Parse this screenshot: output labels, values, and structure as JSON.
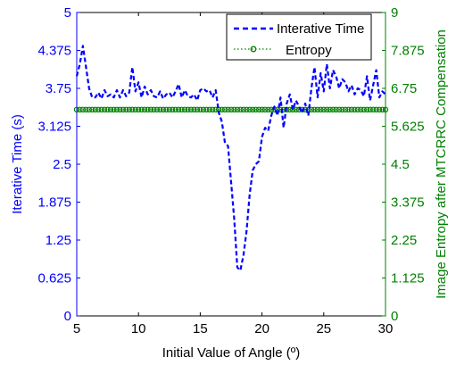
{
  "chart_data": {
    "type": "line",
    "xlabel": "Initial Value of Angle (º)",
    "ylabel_left": "Iterative Time (s)",
    "ylabel_right": "Image Entropy  after MTCRRC Compensation",
    "xlim": [
      5,
      30
    ],
    "ylim_left": [
      0,
      5
    ],
    "ylim_right": [
      0,
      9
    ],
    "x_ticks": [
      "5",
      "10",
      "15",
      "20",
      "25",
      "30"
    ],
    "y_ticks_left": [
      "0",
      "0.625",
      "1.25",
      "1.875",
      "2.5",
      "3.125",
      "3.75",
      "4.375",
      "5"
    ],
    "y_ticks_right": [
      "0",
      "1.125",
      "2.25",
      "3.375",
      "4.5",
      "5.625",
      "6.75",
      "7.875",
      "9"
    ],
    "legend_position": "top-right",
    "colors": {
      "left_axis": "#0000ff",
      "right_axis": "#008000",
      "iterative_series": "#0000ff",
      "entropy_series": "#008000"
    },
    "series": [
      {
        "name": "Interative Time",
        "axis": "left",
        "style": "dashed",
        "x": [
          5.0,
          5.25,
          5.5,
          5.75,
          6.0,
          6.25,
          6.5,
          6.75,
          7.0,
          7.25,
          7.5,
          7.75,
          8.0,
          8.25,
          8.5,
          8.75,
          9.0,
          9.25,
          9.5,
          9.75,
          10.0,
          10.25,
          10.5,
          10.75,
          11.0,
          11.25,
          11.5,
          11.75,
          12.0,
          12.25,
          12.5,
          12.75,
          13.0,
          13.25,
          13.5,
          13.75,
          14.0,
          14.25,
          14.5,
          14.75,
          15.0,
          15.25,
          15.5,
          15.75,
          16.0,
          16.25,
          16.5,
          16.75,
          17.0,
          17.25,
          17.5,
          17.75,
          18.0,
          18.25,
          18.5,
          18.75,
          19.0,
          19.25,
          19.5,
          19.75,
          20.0,
          20.25,
          20.5,
          20.75,
          21.0,
          21.25,
          21.5,
          21.75,
          22.0,
          22.25,
          22.5,
          22.75,
          23.0,
          23.25,
          23.5,
          23.75,
          24.0,
          24.25,
          24.5,
          24.75,
          25.0,
          25.25,
          25.5,
          25.75,
          26.0,
          26.25,
          26.5,
          26.75,
          27.0,
          27.25,
          27.5,
          27.75,
          28.0,
          28.25,
          28.5,
          28.75,
          29.0,
          29.25,
          29.5,
          29.75,
          30.0
        ],
        "values": [
          3.95,
          4.15,
          4.45,
          4.1,
          3.75,
          3.6,
          3.6,
          3.68,
          3.58,
          3.72,
          3.62,
          3.65,
          3.6,
          3.72,
          3.6,
          3.72,
          3.62,
          3.68,
          4.1,
          3.7,
          3.85,
          3.6,
          3.78,
          3.65,
          3.72,
          3.62,
          3.6,
          3.7,
          3.58,
          3.65,
          3.68,
          3.6,
          3.7,
          3.82,
          3.6,
          3.72,
          3.62,
          3.6,
          3.65,
          3.55,
          3.72,
          3.75,
          3.7,
          3.72,
          3.6,
          3.72,
          3.35,
          3.2,
          2.85,
          2.8,
          2.2,
          1.6,
          0.8,
          0.75,
          1.0,
          1.4,
          2.0,
          2.4,
          2.5,
          2.55,
          2.95,
          3.1,
          3.05,
          3.3,
          3.45,
          3.3,
          3.6,
          3.1,
          3.5,
          3.65,
          3.4,
          3.55,
          3.45,
          3.35,
          3.5,
          3.3,
          3.75,
          4.1,
          3.6,
          4.0,
          3.7,
          4.15,
          3.75,
          4.05,
          3.95,
          3.75,
          3.9,
          3.85,
          3.7,
          3.8,
          3.65,
          3.75,
          3.72,
          3.62,
          3.95,
          3.55,
          3.8,
          4.05,
          3.6,
          3.7,
          3.65
        ]
      },
      {
        "name": "Entropy",
        "axis": "right",
        "style": "dotted-circle-markers",
        "x": [
          5.0,
          5.25,
          5.5,
          5.75,
          6.0,
          6.25,
          6.5,
          6.75,
          7.0,
          7.25,
          7.5,
          7.75,
          8.0,
          8.25,
          8.5,
          8.75,
          9.0,
          9.25,
          9.5,
          9.75,
          10.0,
          10.25,
          10.5,
          10.75,
          11.0,
          11.25,
          11.5,
          11.75,
          12.0,
          12.25,
          12.5,
          12.75,
          13.0,
          13.25,
          13.5,
          13.75,
          14.0,
          14.25,
          14.5,
          14.75,
          15.0,
          15.25,
          15.5,
          15.75,
          16.0,
          16.25,
          16.5,
          16.75,
          17.0,
          17.25,
          17.5,
          17.75,
          18.0,
          18.25,
          18.5,
          18.75,
          19.0,
          19.25,
          19.5,
          19.75,
          20.0,
          20.25,
          20.5,
          20.75,
          21.0,
          21.25,
          21.5,
          21.75,
          22.0,
          22.25,
          22.5,
          22.75,
          23.0,
          23.25,
          23.5,
          23.75,
          24.0,
          24.25,
          24.5,
          24.75,
          25.0,
          25.25,
          25.5,
          25.75,
          26.0,
          26.25,
          26.5,
          26.75,
          27.0,
          27.25,
          27.5,
          27.75,
          28.0,
          28.25,
          28.5,
          28.75,
          29.0,
          29.25,
          29.5,
          29.75,
          30.0
        ],
        "constant_value": 6.12
      }
    ]
  }
}
